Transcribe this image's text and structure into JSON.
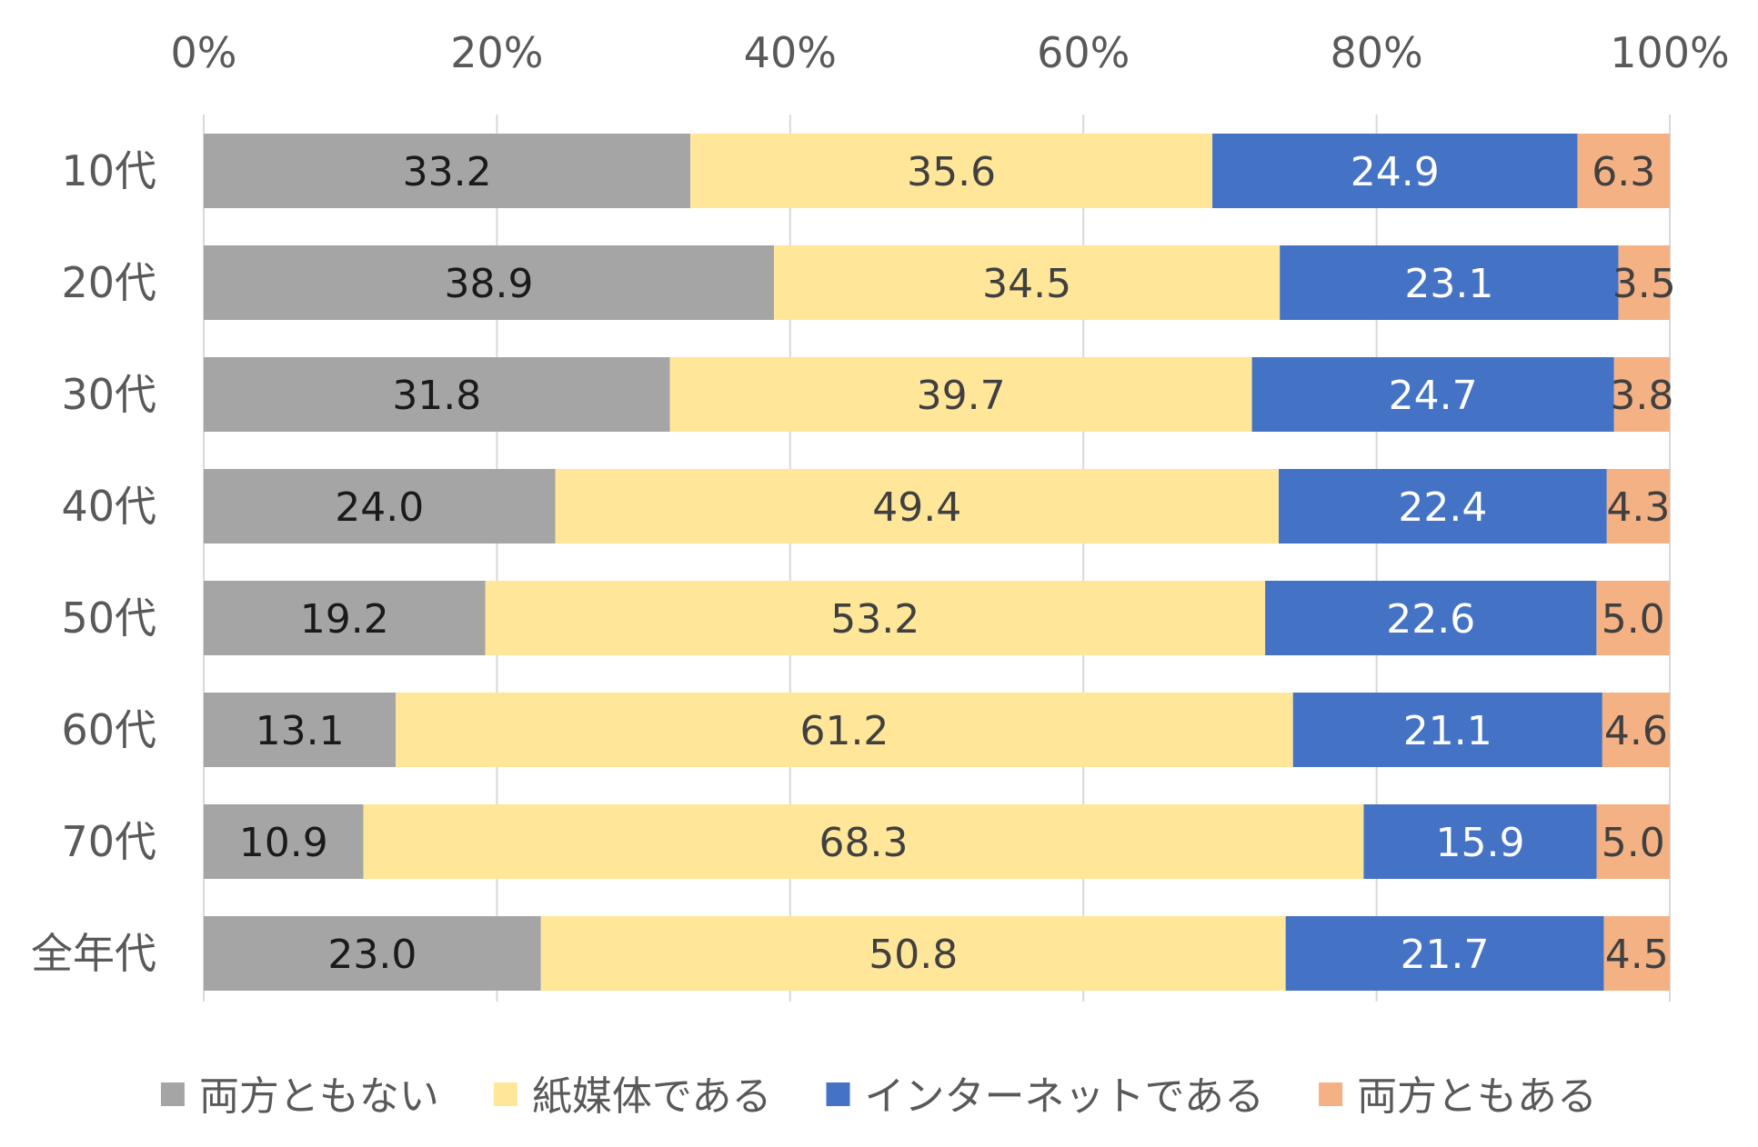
{
  "chart_data": {
    "type": "bar",
    "orientation": "horizontal",
    "stacked": "percent",
    "categories": [
      "10代",
      "20代",
      "30代",
      "40代",
      "50代",
      "60代",
      "70代",
      "全年代"
    ],
    "series": [
      {
        "name": "両方ともない",
        "color": "#A5A5A5",
        "label_color": "#1a1a1a",
        "values": [
          33.2,
          38.9,
          31.8,
          24.0,
          19.2,
          13.1,
          10.9,
          23.0
        ],
        "labels": [
          "33.2",
          "38.9",
          "31.8",
          "24.0",
          "19.2",
          "13.1",
          "10.9",
          "23.0"
        ]
      },
      {
        "name": "紙媒体である",
        "color": "#FFE699",
        "label_color": "#404040",
        "values": [
          35.6,
          34.5,
          39.7,
          49.4,
          53.2,
          61.2,
          68.3,
          50.8
        ],
        "labels": [
          "35.6",
          "34.5",
          "39.7",
          "49.4",
          "53.2",
          "61.2",
          "68.3",
          "50.8"
        ]
      },
      {
        "name": "インターネットである",
        "color": "#4472C4",
        "label_color": "#ffffff",
        "values": [
          24.9,
          23.1,
          24.7,
          22.4,
          22.6,
          21.1,
          15.9,
          21.7
        ],
        "labels": [
          "24.9",
          "23.1",
          "24.7",
          "22.4",
          "22.6",
          "21.1",
          "15.9",
          "21.7"
        ]
      },
      {
        "name": "両方ともある",
        "color": "#F4B183",
        "label_color": "#404040",
        "values": [
          6.3,
          3.5,
          3.8,
          4.3,
          5.0,
          4.6,
          5.0,
          4.5
        ],
        "labels": [
          "6.3",
          "3.5",
          "3.8",
          "4.3",
          "5.0",
          "4.6",
          "5.0",
          "4.5"
        ]
      }
    ],
    "x_ticks": [
      "0%",
      "20%",
      "40%",
      "60%",
      "80%",
      "100%"
    ],
    "xlim": [
      0,
      100
    ],
    "grid": true,
    "legend_position": "bottom"
  }
}
